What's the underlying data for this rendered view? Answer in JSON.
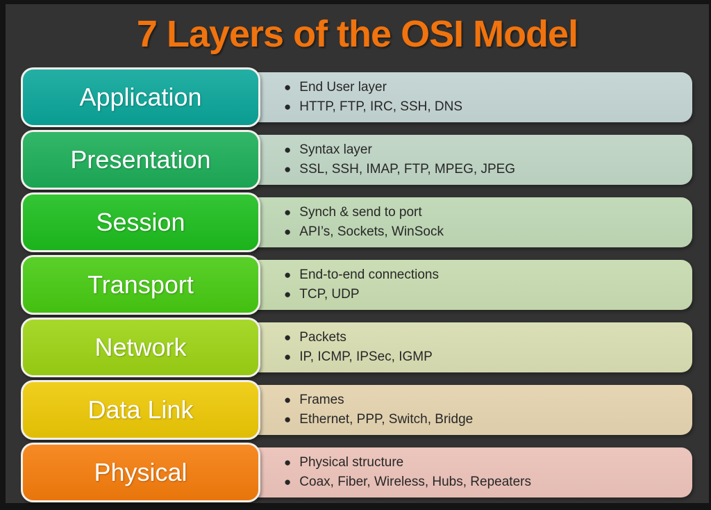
{
  "title": "7 Layers of the OSI Model",
  "colors": {
    "page_background": "#333333",
    "frame": "#141414",
    "title": "#F0730E",
    "layer_label_text": "#FFFFFF",
    "bullet_text": "#272727",
    "label_border": "#F2F0EC"
  },
  "layers": [
    {
      "name": "Application",
      "color": "#0BA69A",
      "desc_bg": "#C3D4D2",
      "bullets": [
        "End User layer",
        "HTTP, FTP, IRC, SSH, DNS"
      ]
    },
    {
      "name": "Presentation",
      "color": "#1CAE58",
      "desc_bg": "#BFD5C4",
      "bullets": [
        "Syntax layer",
        "SSL, SSH, IMAP, FTP, MPEG, JPEG"
      ]
    },
    {
      "name": "Session",
      "color": "#1DBE1E",
      "desc_bg": "#BFD8B5",
      "bullets": [
        "Synch & send to port",
        "API’s, Sockets, WinSock"
      ]
    },
    {
      "name": "Transport",
      "color": "#47CB12",
      "desc_bg": "#C8DBB0",
      "bullets": [
        "End-to-end connections",
        "TCP, UDP"
      ]
    },
    {
      "name": "Network",
      "color": "#9DD414",
      "desc_bg": "#D9DDB2",
      "bullets": [
        "Packets",
        "IP, ICMP, IPSec, IGMP"
      ]
    },
    {
      "name": "Data Link",
      "color": "#EEC905",
      "desc_bg": "#E4D3AF",
      "bullets": [
        "Frames",
        "Ethernet, PPP, Switch, Bridge"
      ]
    },
    {
      "name": "Physical",
      "color": "#F67D0C",
      "desc_bg": "#EBC2B9",
      "bullets": [
        "Physical structure",
        "Coax, Fiber, Wireless, Hubs, Repeaters"
      ]
    }
  ]
}
